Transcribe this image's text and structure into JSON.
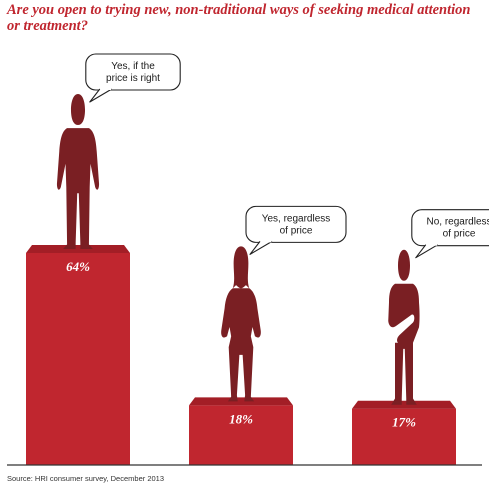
{
  "title": "Are you open to trying new, non-traditional ways of seeking medical attention or treatment?",
  "source": "Source: HRI consumer survey, December 2013",
  "colors": {
    "bar": "#c0262f",
    "bar_top": "#a31e26",
    "figure": "#7a1f23",
    "axis": "#333333"
  },
  "chart_data": {
    "type": "bar",
    "title": "Are you open to trying new, non-traditional ways of seeking medical attention or treatment?",
    "categories": [
      "Yes, if the price is right",
      "Yes, regardless of price",
      "No, regardless of price"
    ],
    "category_lines": [
      [
        "Yes, if the",
        "price is right"
      ],
      [
        "Yes, regardless",
        "of price"
      ],
      [
        "No, regardless",
        "of price"
      ]
    ],
    "values": [
      64,
      18,
      17
    ],
    "value_labels": [
      "64%",
      "18%",
      "17%"
    ],
    "figures": [
      "man-icon",
      "woman-icon",
      "man-arms-crossed-icon"
    ],
    "ylim": [
      0,
      64
    ],
    "grid": false,
    "legend": "none"
  }
}
